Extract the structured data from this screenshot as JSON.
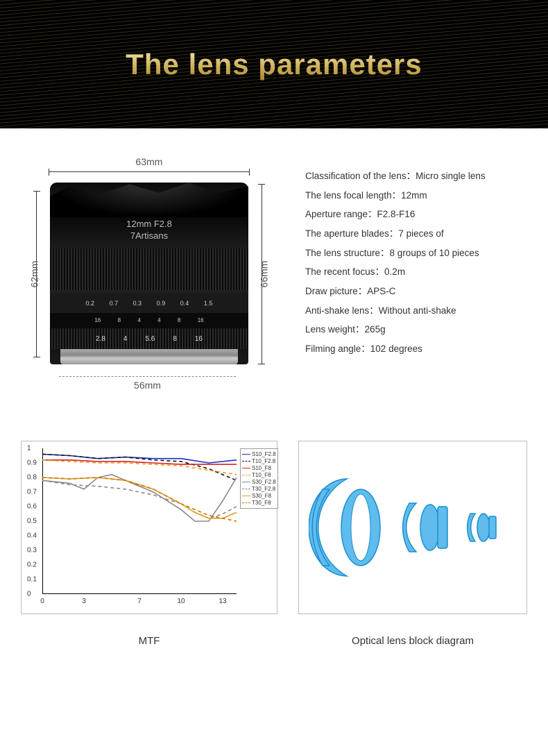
{
  "colors": {
    "header_bg": "#000000",
    "header_gold_top": "#f5e9b5",
    "header_gold_mid": "#d4b862",
    "header_gold_bot": "#a8852e",
    "body_text": "#333333",
    "spec_text": "#333333",
    "panel_border": "#bbbbbb",
    "optical_fill": "#5fbced",
    "optical_stroke": "#1a8fcf"
  },
  "header": {
    "title": "The lens parameters"
  },
  "dimensions": {
    "top_label": "63mm",
    "left_label": "62mm",
    "right_label": "66mm",
    "bottom_label": "56mm"
  },
  "lens_photo": {
    "engraving_line1": "12mm  F2.8",
    "engraving_line2": "7Artisans",
    "distance_scale": [
      "0.2",
      "0.7",
      "0.3",
      "0.9",
      "0.4",
      "1.5"
    ],
    "dof_marks": [
      "16",
      "8",
      "4",
      "4",
      "8",
      "16"
    ],
    "aperture_ring": [
      "2.8",
      "4",
      "5.6",
      "8",
      "16"
    ]
  },
  "specs": [
    {
      "label": "Classification of the lens",
      "value": "Micro single lens"
    },
    {
      "label": "The lens focal length",
      "value": "12mm"
    },
    {
      "label": "Aperture range",
      "value": "F2.8-F16"
    },
    {
      "label": "The aperture blades",
      "value": "7 pieces of"
    },
    {
      "label": "The lens structure",
      "value": "8 groups of 10 pieces"
    },
    {
      "label": "The recent focus",
      "value": "0.2m"
    },
    {
      "label": "Draw picture",
      "value": "APS-C"
    },
    {
      "label": "Anti-shake lens",
      "value": "Without anti-shake"
    },
    {
      "label": "Lens weight",
      "value": "265g"
    },
    {
      "label": "Filming angle",
      "value": "102 degrees"
    }
  ],
  "mtf": {
    "caption": "MTF",
    "y_ticks": [
      0,
      0.1,
      0.2,
      0.3,
      0.4,
      0.5,
      0.6,
      0.7,
      0.8,
      0.9,
      1
    ],
    "x_ticks": [
      0,
      3,
      7,
      10,
      13
    ],
    "x_max": 14,
    "y_max": 1,
    "series": [
      {
        "name": "S10_F2.8",
        "color": "#1030c0",
        "dash": "solid",
        "data": [
          [
            0,
            0.96
          ],
          [
            2,
            0.95
          ],
          [
            4,
            0.93
          ],
          [
            6,
            0.94
          ],
          [
            8,
            0.93
          ],
          [
            10,
            0.93
          ],
          [
            12,
            0.9
          ],
          [
            14,
            0.92
          ]
        ]
      },
      {
        "name": "T10_F2.8",
        "color": "#111111",
        "dash": "dashed",
        "data": [
          [
            0,
            0.96
          ],
          [
            2,
            0.95
          ],
          [
            4,
            0.93
          ],
          [
            6,
            0.94
          ],
          [
            8,
            0.92
          ],
          [
            10,
            0.91
          ],
          [
            12,
            0.86
          ],
          [
            14,
            0.78
          ]
        ]
      },
      {
        "name": "S10_F8",
        "color": "#d62020",
        "dash": "solid",
        "data": [
          [
            0,
            0.92
          ],
          [
            2,
            0.92
          ],
          [
            4,
            0.91
          ],
          [
            6,
            0.91
          ],
          [
            8,
            0.9
          ],
          [
            10,
            0.89
          ],
          [
            12,
            0.89
          ],
          [
            14,
            0.89
          ]
        ]
      },
      {
        "name": "T10_F8",
        "color": "#e89a20",
        "dash": "dashed",
        "data": [
          [
            0,
            0.92
          ],
          [
            2,
            0.91
          ],
          [
            4,
            0.9
          ],
          [
            6,
            0.9
          ],
          [
            8,
            0.89
          ],
          [
            10,
            0.88
          ],
          [
            12,
            0.85
          ],
          [
            14,
            0.82
          ]
        ]
      },
      {
        "name": "S30_F2.8",
        "color": "#888888",
        "dash": "solid",
        "data": [
          [
            0,
            0.78
          ],
          [
            2,
            0.76
          ],
          [
            3,
            0.72
          ],
          [
            4,
            0.8
          ],
          [
            5,
            0.82
          ],
          [
            6,
            0.78
          ],
          [
            8,
            0.7
          ],
          [
            10,
            0.58
          ],
          [
            11,
            0.5
          ],
          [
            12,
            0.5
          ],
          [
            13,
            0.64
          ],
          [
            14,
            0.8
          ]
        ]
      },
      {
        "name": "T30_F2.8",
        "color": "#888888",
        "dash": "dashed",
        "data": [
          [
            0,
            0.78
          ],
          [
            2,
            0.75
          ],
          [
            4,
            0.74
          ],
          [
            6,
            0.72
          ],
          [
            8,
            0.68
          ],
          [
            10,
            0.62
          ],
          [
            11,
            0.56
          ],
          [
            12,
            0.52
          ],
          [
            13,
            0.55
          ],
          [
            14,
            0.6
          ]
        ]
      },
      {
        "name": "S30_F8",
        "color": "#e89a20",
        "dash": "solid",
        "data": [
          [
            0,
            0.8
          ],
          [
            2,
            0.79
          ],
          [
            4,
            0.8
          ],
          [
            6,
            0.78
          ],
          [
            8,
            0.72
          ],
          [
            10,
            0.62
          ],
          [
            11,
            0.56
          ],
          [
            12,
            0.52
          ],
          [
            13,
            0.52
          ],
          [
            14,
            0.56
          ]
        ]
      },
      {
        "name": "T30_F8",
        "color": "#c77800",
        "dash": "dashed",
        "data": [
          [
            0,
            0.8
          ],
          [
            2,
            0.79
          ],
          [
            4,
            0.8
          ],
          [
            6,
            0.78
          ],
          [
            8,
            0.72
          ],
          [
            10,
            0.62
          ],
          [
            12,
            0.54
          ],
          [
            14,
            0.5
          ]
        ]
      }
    ]
  },
  "optical": {
    "caption": "Optical lens block diagram",
    "fill": "#5fbced",
    "stroke": "#1a8fcf",
    "groups_description": "3 groups: large front concave meniscus pair, middle doublet, rear small doublet"
  }
}
